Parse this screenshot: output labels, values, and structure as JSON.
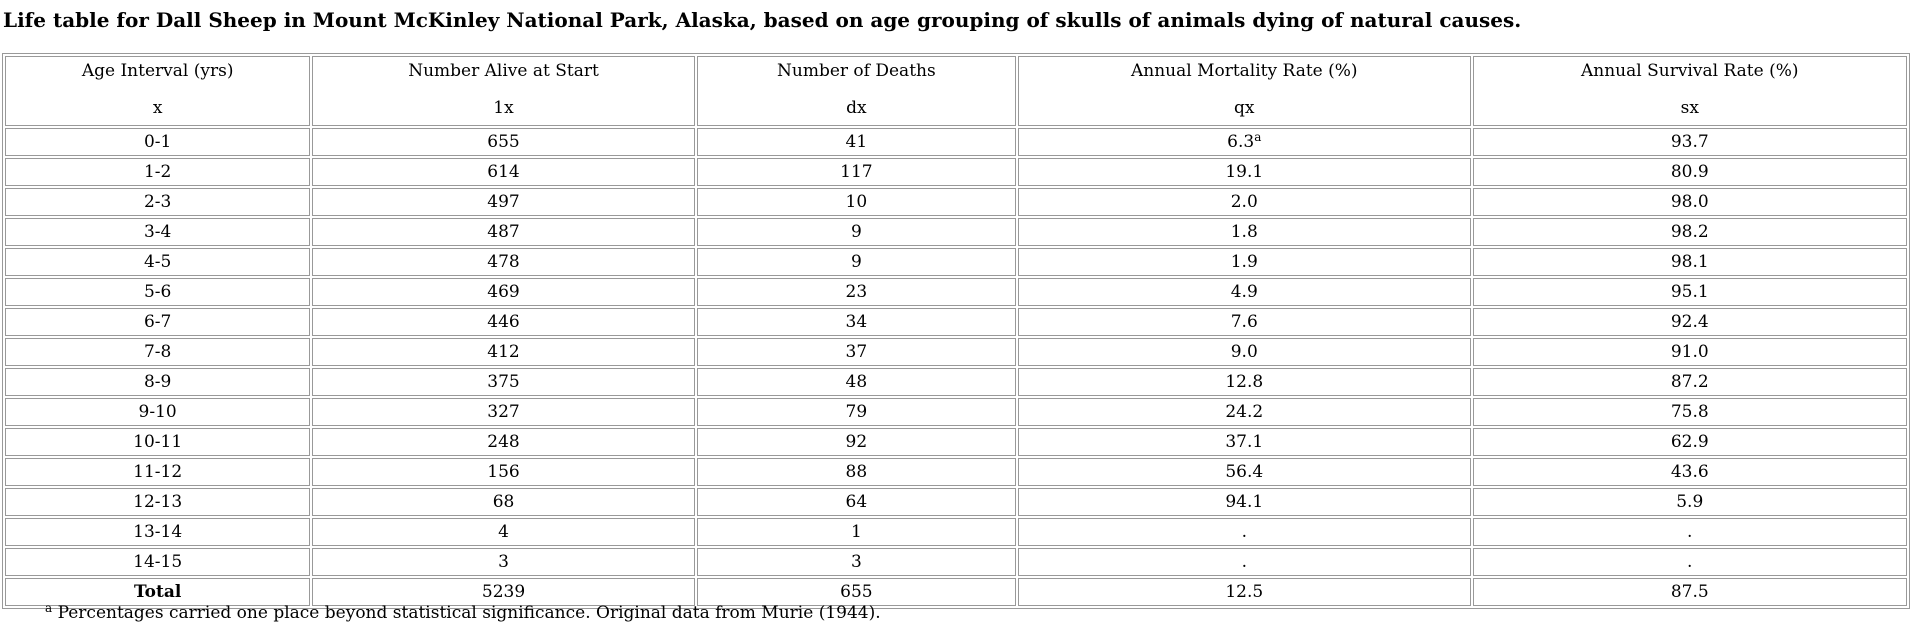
{
  "title": "Life table for Dall Sheep in Mount McKinley National Park, Alaska, based on age grouping of skulls of animals dying of natural causes.",
  "table": {
    "headers": [
      {
        "label": "Age Interval (yrs)",
        "symbol": "x"
      },
      {
        "label": "Number Alive at Start",
        "symbol": "1x"
      },
      {
        "label": "Number of Deaths",
        "symbol": "dx"
      },
      {
        "label": "Annual Mortality Rate (%)",
        "symbol": "qx"
      },
      {
        "label": "Annual Survival Rate (%)",
        "symbol": "sx"
      }
    ],
    "rows": [
      [
        "0-1",
        "655",
        "41",
        {
          "value": "6.3",
          "sup": "a"
        },
        "93.7"
      ],
      [
        "1-2",
        "614",
        "117",
        "19.1",
        "80.9"
      ],
      [
        "2-3",
        "497",
        "10",
        "2.0",
        "98.0"
      ],
      [
        "3-4",
        "487",
        "9",
        "1.8",
        "98.2"
      ],
      [
        "4-5",
        "478",
        "9",
        "1.9",
        "98.1"
      ],
      [
        "5-6",
        "469",
        "23",
        "4.9",
        "95.1"
      ],
      [
        "6-7",
        "446",
        "34",
        "7.6",
        "92.4"
      ],
      [
        "7-8",
        "412",
        "37",
        "9.0",
        "91.0"
      ],
      [
        "8-9",
        "375",
        "48",
        "12.8",
        "87.2"
      ],
      [
        "9-10",
        "327",
        "79",
        "24.2",
        "75.8"
      ],
      [
        "10-11",
        "248",
        "92",
        "37.1",
        "62.9"
      ],
      [
        "11-12",
        "156",
        "88",
        "56.4",
        "43.6"
      ],
      [
        "12-13",
        "68",
        "64",
        "94.1",
        "5.9"
      ],
      [
        "13-14",
        "4",
        "1",
        ".",
        "."
      ],
      [
        "14-15",
        "3",
        "3",
        ".",
        "."
      ],
      [
        "Total",
        "5239",
        "655",
        "12.5",
        "87.5"
      ]
    ]
  },
  "footnote": {
    "marker": "a",
    "text": "Percentages carried one place beyond statistical significance. Original data from Murie (1944)."
  }
}
